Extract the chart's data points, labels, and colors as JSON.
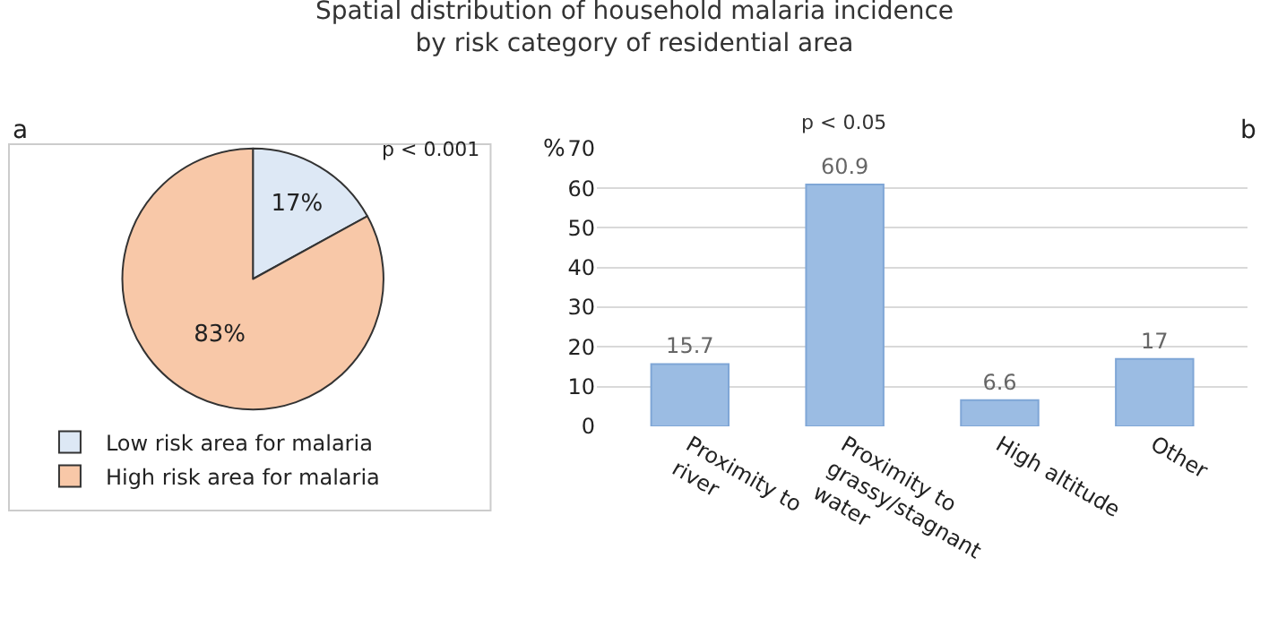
{
  "chart_data": [
    {
      "type": "pie",
      "title": "Spatial distribution of household malaria incidence\nby risk category of residential area",
      "categories": [
        "Low risk area for malaria",
        "High risk area for malaria"
      ],
      "values": [
        17,
        83
      ],
      "value_labels": [
        "17%",
        "83%"
      ],
      "colors": [
        "#dde8f5",
        "#f8c8a8"
      ],
      "legend": "bottom",
      "annotations": [
        "a",
        "p < 0.001"
      ]
    },
    {
      "type": "bar",
      "ylabel": "%",
      "categories": [
        "Proximity to river",
        "Proximity to grassy/stagnant water",
        "High altitude",
        "Other"
      ],
      "values": [
        15.7,
        60.9,
        6.6,
        17
      ],
      "color": "#9bbce3",
      "data_labels": true,
      "ylim": [
        0,
        70
      ],
      "yticks": [
        0,
        10,
        20,
        30,
        40,
        50,
        60,
        70
      ],
      "grid": "y",
      "legend": false,
      "annotations": [
        "b",
        "p < 0.05"
      ]
    }
  ]
}
